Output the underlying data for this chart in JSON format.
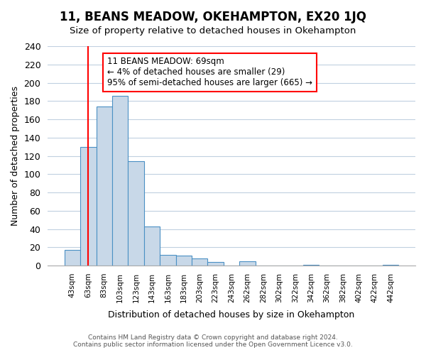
{
  "title": "11, BEANS MEADOW, OKEHAMPTON, EX20 1JQ",
  "subtitle": "Size of property relative to detached houses in Okehampton",
  "xlabel": "Distribution of detached houses by size in Okehampton",
  "ylabel": "Number of detached properties",
  "bin_labels": [
    "43sqm",
    "63sqm",
    "83sqm",
    "103sqm",
    "123sqm",
    "143sqm",
    "163sqm",
    "183sqm",
    "203sqm",
    "223sqm",
    "243sqm",
    "262sqm",
    "282sqm",
    "302sqm",
    "322sqm",
    "342sqm",
    "362sqm",
    "382sqm",
    "402sqm",
    "422sqm",
    "442sqm"
  ],
  "bar_heights": [
    17,
    130,
    174,
    186,
    114,
    43,
    12,
    11,
    8,
    4,
    0,
    5,
    0,
    0,
    0,
    1,
    0,
    0,
    0,
    0,
    1
  ],
  "bar_color": "#c8d8e8",
  "bar_edge_color": "#4a90c4",
  "vline_x": 1,
  "vline_color": "red",
  "ylim": [
    0,
    240
  ],
  "yticks": [
    0,
    20,
    40,
    60,
    80,
    100,
    120,
    140,
    160,
    180,
    200,
    220,
    240
  ],
  "annotation_title": "11 BEANS MEADOW: 69sqm",
  "annotation_line1": "← 4% of detached houses are smaller (29)",
  "annotation_line2": "95% of semi-detached houses are larger (665) →",
  "annotation_box_color": "white",
  "annotation_box_edge": "red",
  "footer_line1": "Contains HM Land Registry data © Crown copyright and database right 2024.",
  "footer_line2": "Contains public sector information licensed under the Open Government Licence v3.0."
}
